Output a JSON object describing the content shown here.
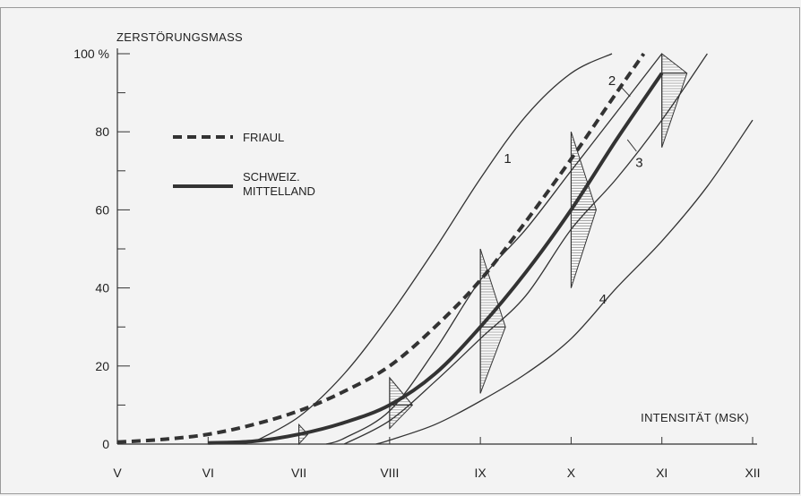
{
  "chart_data": {
    "type": "line",
    "ylabel": "ZERSTÖRUNGSMASS",
    "xlabel": "INTENSITÄT (MSK)",
    "x_categories": [
      "V",
      "VI",
      "VII",
      "VIII",
      "IX",
      "X",
      "XI",
      "XII"
    ],
    "y_ticks": [
      "0",
      "20",
      "40",
      "60",
      "80",
      "100 %"
    ],
    "ylim": [
      0,
      100
    ],
    "xlim": [
      5,
      12
    ],
    "grid": false,
    "legend": [
      {
        "name": "FRIAUL",
        "style": "dashed"
      },
      {
        "name": "SCHWEIZ. MITTELLAND",
        "lines": [
          "SCHWEIZ.",
          "MITTELLAND"
        ],
        "style": "solid-thick"
      }
    ],
    "series": [
      {
        "name": "FRIAUL",
        "style": "dashed",
        "x": [
          5.0,
          5.5,
          6.0,
          6.5,
          7.0,
          7.5,
          8.0,
          8.5,
          9.0,
          9.5,
          10.0,
          10.5,
          10.8
        ],
        "y": [
          0.5,
          1.2,
          2.5,
          5.0,
          8.5,
          13.5,
          20,
          30,
          42,
          57,
          73,
          90,
          100
        ]
      },
      {
        "name": "SCHWEIZ. MITTELLAND",
        "style": "solid-thick",
        "x": [
          6.0,
          6.5,
          7.0,
          7.5,
          8.0,
          8.5,
          9.0,
          9.5,
          10.0,
          10.5,
          11.0
        ],
        "y": [
          0.3,
          0.7,
          2.5,
          5.5,
          10,
          18,
          30,
          44,
          60,
          78,
          95
        ]
      },
      {
        "label": "1",
        "style": "thin",
        "x": [
          6.5,
          7.0,
          7.5,
          8.0,
          8.5,
          9.0,
          9.5,
          10.0,
          10.45
        ],
        "y": [
          0.5,
          7,
          18,
          33,
          50,
          68,
          84,
          95,
          100
        ]
      },
      {
        "label": "2",
        "style": "thin",
        "x": [
          7.3,
          7.5,
          8.0,
          8.5,
          9.0,
          9.5,
          10.0,
          10.5,
          11.0
        ],
        "y": [
          0,
          1.5,
          8.5,
          24,
          42,
          55,
          70,
          85,
          100
        ]
      },
      {
        "label": "3",
        "style": "thin",
        "x": [
          7.5,
          8.0,
          8.5,
          9.0,
          9.5,
          10.0,
          10.5,
          11.0,
          11.5
        ],
        "y": [
          0,
          6,
          16,
          27,
          38,
          55,
          68,
          83,
          100
        ]
      },
      {
        "label": "4",
        "style": "thin",
        "x": [
          7.85,
          8.0,
          8.5,
          9.0,
          9.5,
          10.0,
          10.5,
          11.0,
          11.5,
          12.0
        ],
        "y": [
          0,
          1,
          5,
          11,
          18,
          27,
          40,
          52,
          66,
          83
        ]
      }
    ],
    "distributions": [
      {
        "x": 7.0,
        "mean": 2.5,
        "low": 0,
        "high": 5
      },
      {
        "x": 8.0,
        "mean": 10,
        "low": 4,
        "high": 17
      },
      {
        "x": 9.0,
        "mean": 30,
        "low": 13,
        "high": 50
      },
      {
        "x": 10.0,
        "mean": 60,
        "low": 40,
        "high": 80
      },
      {
        "x": 11.0,
        "mean": 95,
        "low": 76,
        "high": 100
      }
    ]
  }
}
